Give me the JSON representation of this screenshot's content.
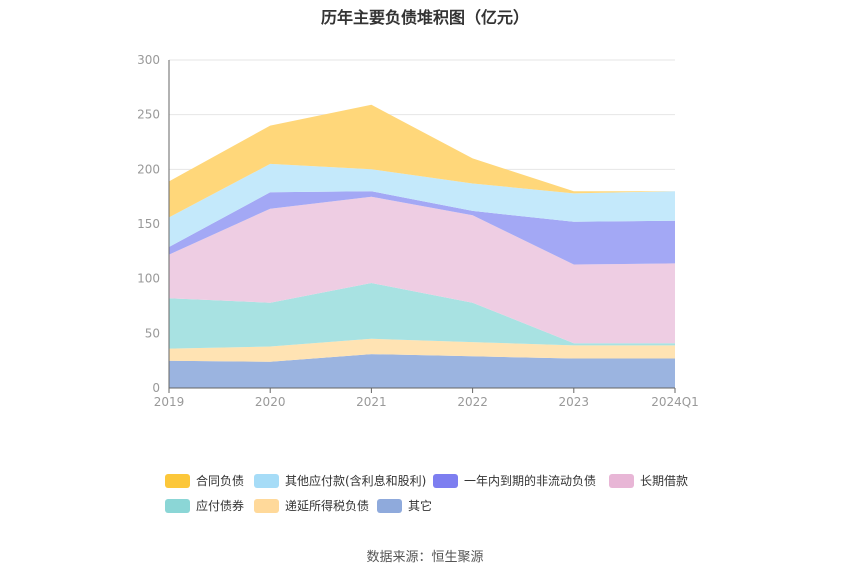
{
  "page": {
    "title": "历年主要负债堆积图（亿元）",
    "source": "数据来源：恒生聚源"
  },
  "chart_data": {
    "type": "area",
    "stacked": true,
    "title": "历年主要负债堆积图（亿元）",
    "categories": [
      "2019",
      "2020",
      "2021",
      "2022",
      "2023",
      "2024Q1"
    ],
    "ylim": [
      0,
      300
    ],
    "yticks": [
      0,
      50,
      100,
      150,
      200,
      250,
      300
    ],
    "grid": true,
    "legend_position": "bottom",
    "series": [
      {
        "name": "其它",
        "color": "#9bb4e0",
        "legend_color": "#8faadc",
        "values": [
          25,
          24,
          31,
          29,
          27,
          27
        ]
      },
      {
        "name": "递延所得税负债",
        "color": "#ffe3b3",
        "legend_color": "#ffd99a",
        "values": [
          11,
          14,
          14,
          13,
          12,
          12
        ]
      },
      {
        "name": "应付债券",
        "color": "#a8e2e2",
        "legend_color": "#8bd6d6",
        "values": [
          46,
          40,
          51,
          36,
          2,
          2
        ]
      },
      {
        "name": "长期借款",
        "color": "#eecde3",
        "legend_color": "#e8b6d6",
        "values": [
          40,
          86,
          79,
          80,
          72,
          73
        ]
      },
      {
        "name": "一年内到期的非流动负债",
        "color": "#a3a8f5",
        "legend_color": "#7d7ef0",
        "values": [
          7,
          15,
          5,
          4,
          39,
          39
        ]
      },
      {
        "name": "其他应付款(含利息和股利)",
        "color": "#c4e9fb",
        "legend_color": "#a6dcf7",
        "values": [
          27,
          26,
          20,
          25,
          26,
          27
        ]
      },
      {
        "name": "合同负债",
        "color": "#ffd77a",
        "legend_color": "#fcc73a",
        "values": [
          33,
          35,
          59,
          23,
          2,
          0
        ]
      }
    ]
  }
}
